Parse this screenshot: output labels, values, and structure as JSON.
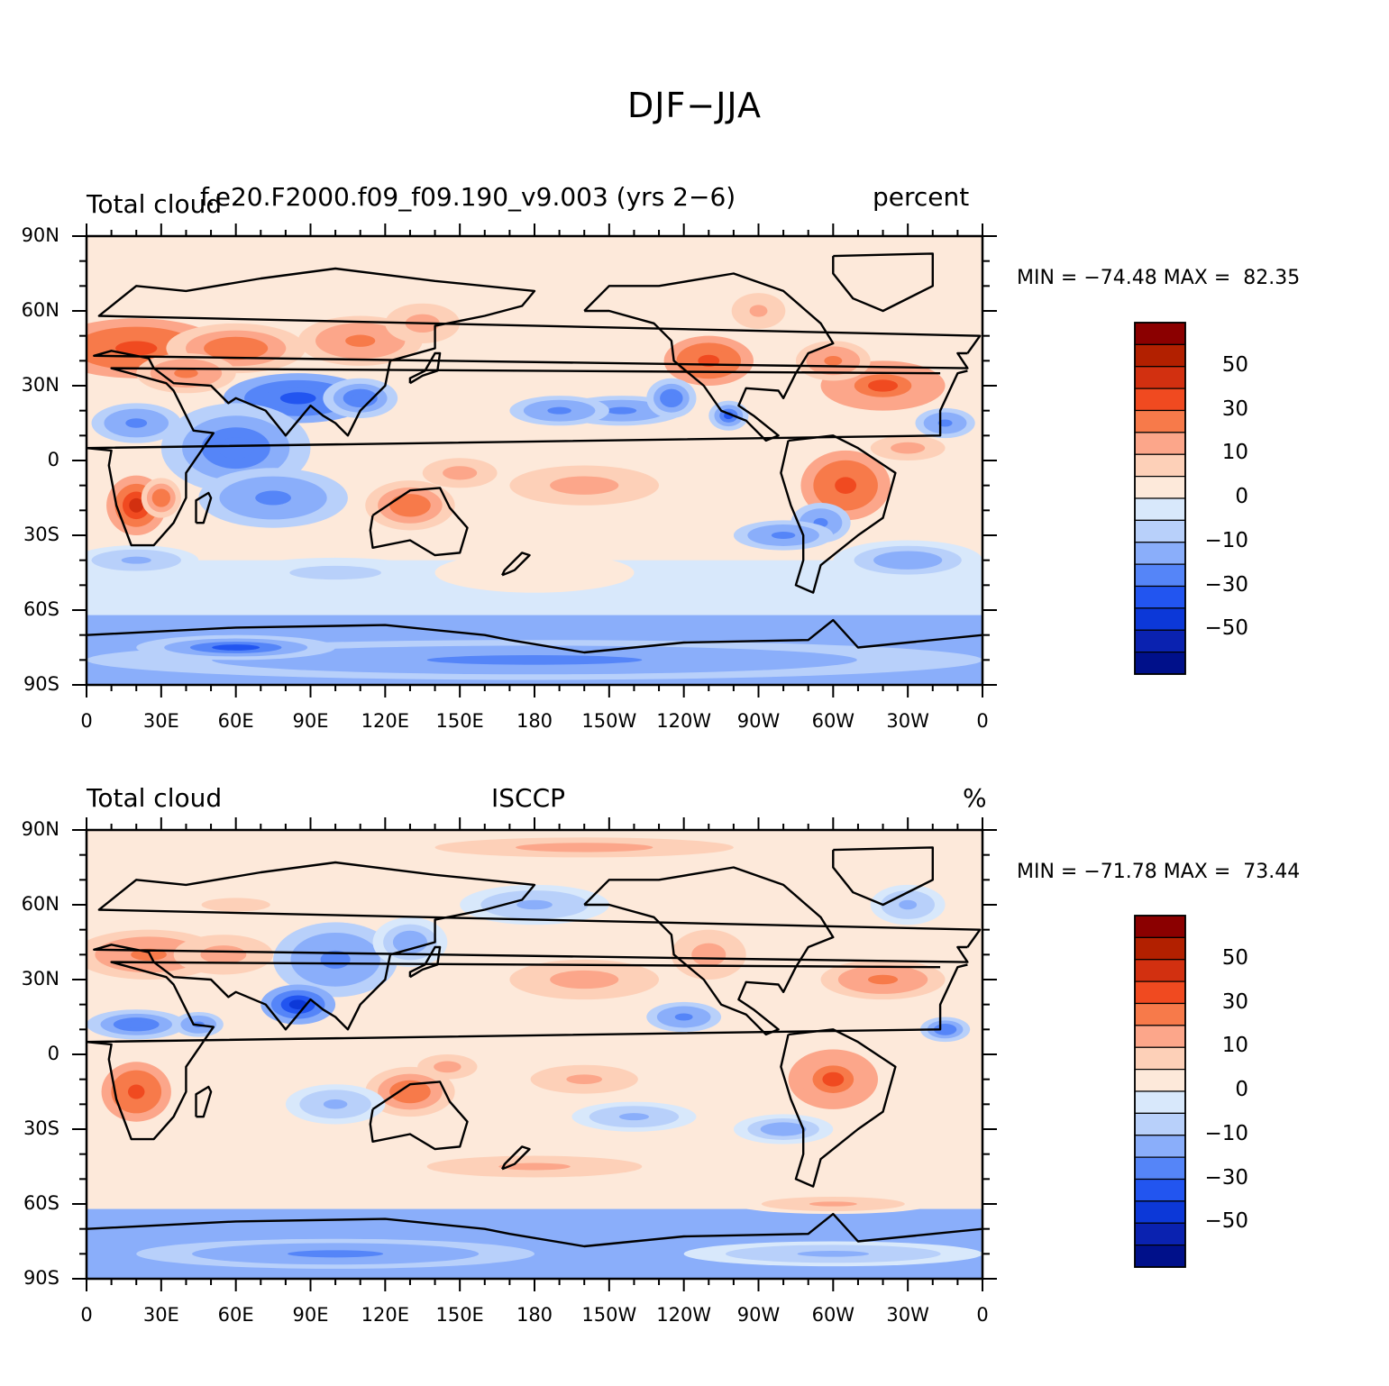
{
  "title": "DJF−JJA",
  "panels": [
    {
      "left_label": "Total cloud",
      "center_label": "f.e20.F2000.f09_f09.190_v9.003 (yrs 2−6)",
      "right_label": "percent",
      "stats": "MIN = −74.48 MAX =  82.35",
      "min": -74.48,
      "max": 82.35
    },
    {
      "left_label": "Total cloud",
      "center_label": "ISCCP",
      "right_label": "%",
      "stats": "MIN = −71.78 MAX =  73.44",
      "min": -71.78,
      "max": 73.44
    }
  ],
  "lat_ticks": [
    "90N",
    "60N",
    "30N",
    "0",
    "30S",
    "60S",
    "90S"
  ],
  "lon_ticks": [
    "0",
    "30E",
    "60E",
    "90E",
    "120E",
    "150E",
    "180",
    "150W",
    "120W",
    "90W",
    "60W",
    "30W",
    "0"
  ],
  "colorbar": {
    "labels": [
      "50",
      "30",
      "10",
      "0",
      "−10",
      "−30",
      "−50"
    ],
    "colors": [
      "#8b0000",
      "#b22000",
      "#d23010",
      "#f04a20",
      "#f77a4a",
      "#fca68a",
      "#fdd0b8",
      "#fde9da",
      "#d8e8fb",
      "#b8d0fa",
      "#8aaefa",
      "#5585f8",
      "#2255f0",
      "#0c38d8",
      "#0a22b0",
      "#00108a"
    ]
  }
}
